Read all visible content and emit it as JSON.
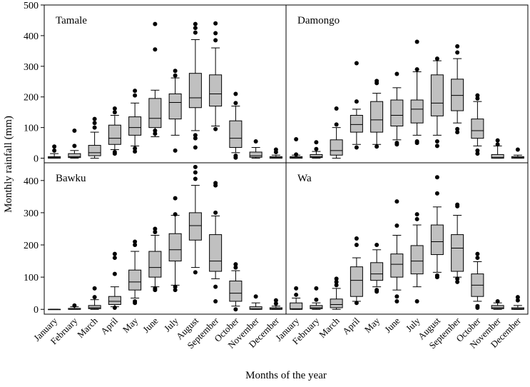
{
  "chart_data": {
    "type": "box",
    "ylabel": "Monthly rainfall (mm)",
    "xlabel": "Months of the year",
    "months": [
      "January",
      "February",
      "March",
      "April",
      "May",
      "June",
      "July",
      "August",
      "September",
      "October",
      "November",
      "December"
    ],
    "top_yticks": [
      "0",
      "100",
      "200",
      "300",
      "400",
      "500"
    ],
    "bottom_yticks": [
      "0",
      "100",
      "200",
      "300",
      "400"
    ],
    "top_ylim": [
      -15,
      500
    ],
    "bottom_ylim": [
      -15,
      455
    ],
    "panels": [
      {
        "name": "Tamale",
        "boxes": [
          {
            "lw": 0,
            "q1": 0,
            "med": 2,
            "q3": 5,
            "uw": 15,
            "out": [
              25,
              38
            ]
          },
          {
            "lw": 0,
            "q1": 2,
            "med": 5,
            "q3": 15,
            "uw": 25,
            "out": [
              40,
              90
            ]
          },
          {
            "lw": 0,
            "q1": 8,
            "med": 18,
            "q3": 42,
            "uw": 85,
            "out": [
              100,
              115,
              128
            ]
          },
          {
            "lw": 28,
            "q1": 45,
            "med": 65,
            "q3": 108,
            "uw": 140,
            "out": [
              15,
              20,
              150,
              162
            ]
          },
          {
            "lw": 40,
            "q1": 75,
            "med": 100,
            "q3": 135,
            "uw": 180,
            "out": [
              22,
              32,
              205,
              220
            ]
          },
          {
            "lw": 70,
            "q1": 100,
            "med": 130,
            "q3": 195,
            "uw": 222,
            "out": [
              80,
              90,
              355,
              438
            ]
          },
          {
            "lw": 75,
            "q1": 128,
            "med": 182,
            "q3": 210,
            "uw": 262,
            "out": [
              25,
              270,
              285
            ]
          },
          {
            "lw": 90,
            "q1": 165,
            "med": 197,
            "q3": 277,
            "uw": 387,
            "out": [
              35,
              65,
              75,
              410,
              425,
              438
            ]
          },
          {
            "lw": 105,
            "q1": 170,
            "med": 210,
            "q3": 272,
            "uw": 360,
            "out": [
              95,
              385,
              408,
              440
            ]
          },
          {
            "lw": 18,
            "q1": 35,
            "med": 65,
            "q3": 122,
            "uw": 170,
            "out": [
              2,
              8,
              180,
              210
            ]
          },
          {
            "lw": 0,
            "q1": 3,
            "med": 8,
            "q3": 20,
            "uw": 35,
            "out": [
              55
            ]
          },
          {
            "lw": 0,
            "q1": 0,
            "med": 2,
            "q3": 5,
            "uw": 10,
            "out": [
              20,
              28
            ]
          }
        ]
      },
      {
        "name": "Damongo",
        "boxes": [
          {
            "lw": 0,
            "q1": 0,
            "med": 2,
            "q3": 5,
            "uw": 10,
            "out": [
              12,
              62
            ]
          },
          {
            "lw": 0,
            "q1": 2,
            "med": 5,
            "q3": 12,
            "uw": 22,
            "out": [
              30,
              52
            ]
          },
          {
            "lw": 0,
            "q1": 10,
            "med": 25,
            "q3": 60,
            "uw": 100,
            "out": [
              110,
              162
            ]
          },
          {
            "lw": 45,
            "q1": 85,
            "med": 110,
            "q3": 140,
            "uw": 160,
            "out": [
              35,
              185,
              310
            ]
          },
          {
            "lw": 45,
            "q1": 85,
            "med": 125,
            "q3": 185,
            "uw": 212,
            "out": [
              38,
              245,
              252
            ]
          },
          {
            "lw": 60,
            "q1": 105,
            "med": 140,
            "q3": 190,
            "uw": 230,
            "out": [
              45,
              50,
              275
            ]
          },
          {
            "lw": 75,
            "q1": 115,
            "med": 160,
            "q3": 190,
            "uw": 282,
            "out": [
              50,
              55,
              290,
              380
            ]
          },
          {
            "lw": 75,
            "q1": 138,
            "med": 180,
            "q3": 272,
            "uw": 318,
            "out": [
              40,
              55,
              325
            ]
          },
          {
            "lw": 115,
            "q1": 155,
            "med": 205,
            "q3": 258,
            "uw": 325,
            "out": [
              85,
              95,
              345,
              365
            ]
          },
          {
            "lw": 40,
            "q1": 65,
            "med": 90,
            "q3": 128,
            "uw": 185,
            "out": [
              15,
              25,
              195,
              205
            ]
          },
          {
            "lw": 0,
            "q1": 0,
            "med": 3,
            "q3": 12,
            "uw": 40,
            "out": [
              45,
              58
            ]
          },
          {
            "lw": 0,
            "q1": 0,
            "med": 2,
            "q3": 5,
            "uw": 10,
            "out": [
              28
            ]
          }
        ]
      },
      {
        "name": "Bawku",
        "boxes": [
          {
            "lw": 0,
            "q1": 0,
            "med": 0,
            "q3": 0,
            "uw": 0,
            "out": []
          },
          {
            "lw": 0,
            "q1": 0,
            "med": 0,
            "q3": 3,
            "uw": 8,
            "out": [
              12
            ]
          },
          {
            "lw": 0,
            "q1": 2,
            "med": 5,
            "q3": 12,
            "uw": 30,
            "out": [
              38,
              65
            ]
          },
          {
            "lw": 8,
            "q1": 15,
            "med": 25,
            "q3": 40,
            "uw": 70,
            "out": [
              5,
              110,
              160,
              172
            ]
          },
          {
            "lw": 35,
            "q1": 60,
            "med": 85,
            "q3": 122,
            "uw": 180,
            "out": [
              20,
              25,
              200,
              210
            ]
          },
          {
            "lw": 70,
            "q1": 100,
            "med": 130,
            "q3": 180,
            "uw": 230,
            "out": [
              60,
              65,
              240,
              250
            ]
          },
          {
            "lw": 75,
            "q1": 150,
            "med": 185,
            "q3": 235,
            "uw": 292,
            "out": [
              60,
              70,
              295,
              345
            ]
          },
          {
            "lw": 130,
            "q1": 215,
            "med": 260,
            "q3": 300,
            "uw": 385,
            "out": [
              115,
              405,
              425,
              442
            ]
          },
          {
            "lw": 95,
            "q1": 118,
            "med": 150,
            "q3": 232,
            "uw": 290,
            "out": [
              25,
              70,
              300,
              385,
              392
            ]
          },
          {
            "lw": 10,
            "q1": 25,
            "med": 50,
            "q3": 88,
            "uw": 120,
            "out": [
              0,
              130,
              140
            ]
          },
          {
            "lw": 0,
            "q1": 0,
            "med": 2,
            "q3": 8,
            "uw": 20,
            "out": [
              40
            ]
          },
          {
            "lw": 0,
            "q1": 0,
            "med": 2,
            "q3": 5,
            "uw": 10,
            "out": [
              18,
              28
            ]
          }
        ]
      },
      {
        "name": "Wa",
        "boxes": [
          {
            "lw": 0,
            "q1": 0,
            "med": 2,
            "q3": 20,
            "uw": 35,
            "out": [
              45,
              65
            ]
          },
          {
            "lw": 0,
            "q1": 2,
            "med": 5,
            "q3": 12,
            "uw": 20,
            "out": [
              30,
              65
            ]
          },
          {
            "lw": 0,
            "q1": 5,
            "med": 15,
            "q3": 32,
            "uw": 65,
            "out": [
              75,
              85,
              95
            ]
          },
          {
            "lw": 25,
            "q1": 40,
            "med": 90,
            "q3": 132,
            "uw": 160,
            "out": [
              20,
              200,
              220
            ]
          },
          {
            "lw": 70,
            "q1": 90,
            "med": 110,
            "q3": 145,
            "uw": 185,
            "out": [
              55,
              60,
              200
            ]
          },
          {
            "lw": 60,
            "q1": 100,
            "med": 140,
            "q3": 172,
            "uw": 230,
            "out": [
              25,
              40,
              260,
              335
            ]
          },
          {
            "lw": 70,
            "q1": 110,
            "med": 150,
            "q3": 198,
            "uw": 262,
            "out": [
              25,
              280,
              295
            ]
          },
          {
            "lw": 115,
            "q1": 170,
            "med": 210,
            "q3": 262,
            "uw": 318,
            "out": [
              100,
              105,
              360,
              410
            ]
          },
          {
            "lw": 100,
            "q1": 118,
            "med": 190,
            "q3": 232,
            "uw": 292,
            "out": [
              85,
              95,
              320,
              325
            ]
          },
          {
            "lw": 25,
            "q1": 40,
            "med": 75,
            "q3": 110,
            "uw": 148,
            "out": [
              5,
              10,
              160,
              172
            ]
          },
          {
            "lw": 0,
            "q1": 2,
            "med": 5,
            "q3": 12,
            "uw": 20,
            "out": [
              25
            ]
          },
          {
            "lw": 0,
            "q1": 0,
            "med": 2,
            "q3": 5,
            "uw": 12,
            "out": [
              28,
              38
            ]
          }
        ]
      }
    ]
  }
}
